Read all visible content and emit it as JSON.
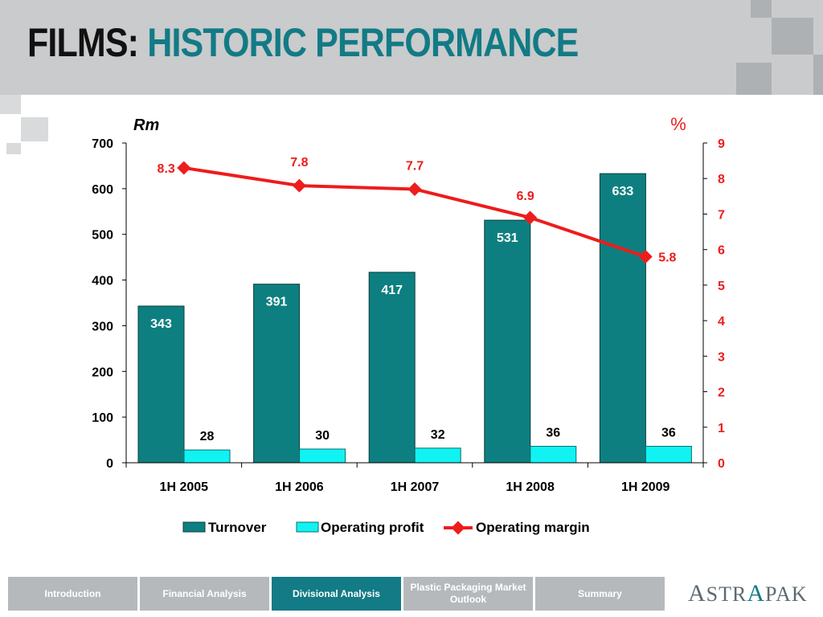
{
  "title": {
    "part1": "FILMS:",
    "part2": "HISTORIC PERFORMANCE"
  },
  "colors": {
    "turnover": "#0e7f80",
    "operating_profit": "#11f2f2",
    "operating_margin": "#ee1c1c",
    "title_accent": "#127b85",
    "nav_active": "#127b85"
  },
  "chart_data": {
    "type": "bar",
    "categories": [
      "1H 2005",
      "1H 2006",
      "1H 2007",
      "1H 2008",
      "1H 2009"
    ],
    "series": [
      {
        "name": "Turnover",
        "type": "bar",
        "axis": "left",
        "values": [
          343,
          391,
          417,
          531,
          633
        ]
      },
      {
        "name": "Operating profit",
        "type": "bar",
        "axis": "left",
        "values": [
          28,
          30,
          32,
          36,
          36
        ]
      },
      {
        "name": "Operating margin",
        "type": "line",
        "axis": "right",
        "values": [
          8.3,
          7.8,
          7.7,
          6.9,
          5.8
        ]
      }
    ],
    "left_axis": {
      "label": "Rm",
      "range": [
        0,
        700
      ],
      "ticks": [
        "0",
        "100",
        "200",
        "300",
        "400",
        "500",
        "600",
        "700"
      ]
    },
    "right_axis": {
      "label": "%",
      "range": [
        0,
        9
      ],
      "ticks": [
        "0",
        "1",
        "2",
        "3",
        "4",
        "5",
        "6",
        "7",
        "8",
        "9"
      ]
    },
    "legend_position": "bottom",
    "grid": false
  },
  "nav": {
    "items": [
      {
        "label": "Introduction",
        "active": false
      },
      {
        "label": "Financial Analysis",
        "active": false
      },
      {
        "label": "Divisional Analysis",
        "active": true
      },
      {
        "label": "Plastic Packaging Market Outlook",
        "active": false
      },
      {
        "label": "Summary",
        "active": false
      }
    ]
  },
  "logo": {
    "text": "ASTRAPAK"
  }
}
